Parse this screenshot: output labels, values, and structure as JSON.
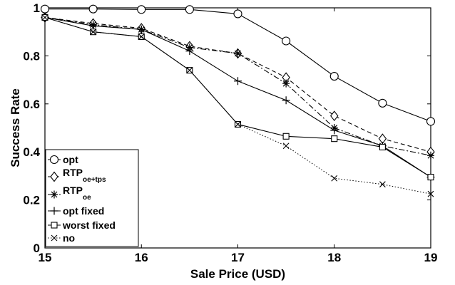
{
  "chart_data": {
    "type": "line",
    "xlabel": "Sale Price (USD)",
    "ylabel": "Success Rate",
    "xlim": [
      15,
      19
    ],
    "ylim": [
      0,
      1
    ],
    "xticks": [
      "15",
      "16",
      "17",
      "18",
      "19"
    ],
    "yticks": [
      "0",
      "0.2",
      "0.4",
      "0.6",
      "0.8",
      "1"
    ],
    "x": [
      15,
      15.5,
      16,
      16.5,
      17,
      17.5,
      18,
      18.5,
      19
    ],
    "legend_position": "bottom-left",
    "grid": false,
    "series": [
      {
        "name": "opt",
        "sub": "",
        "marker": "circle",
        "dash": "solid",
        "values": [
          0.995,
          0.995,
          0.993,
          0.993,
          0.975,
          0.862,
          0.715,
          0.603,
          0.527
        ]
      },
      {
        "name": "RTP",
        "sub": "oe+tps",
        "marker": "diamond",
        "dash": "dashed",
        "values": [
          0.96,
          0.935,
          0.915,
          0.84,
          0.81,
          0.71,
          0.55,
          0.455,
          0.4
        ]
      },
      {
        "name": "RTP",
        "sub": "oe",
        "marker": "star",
        "dash": "dashdot",
        "values": [
          0.96,
          0.93,
          0.91,
          0.835,
          0.81,
          0.685,
          0.5,
          0.425,
          0.385
        ]
      },
      {
        "name": "opt fixed",
        "sub": "",
        "marker": "plus",
        "dash": "solid",
        "values": [
          0.96,
          0.925,
          0.91,
          0.82,
          0.695,
          0.615,
          0.49,
          0.425,
          0.295
        ]
      },
      {
        "name": "worst fixed",
        "sub": "",
        "marker": "square",
        "dash": "solid",
        "values": [
          0.96,
          0.9,
          0.88,
          0.74,
          0.515,
          0.465,
          0.455,
          0.42,
          0.295
        ]
      },
      {
        "name": "no",
        "sub": "",
        "marker": "x",
        "dash": "dotted",
        "values": [
          0.96,
          0.9,
          0.88,
          0.74,
          0.515,
          0.425,
          0.29,
          0.265,
          0.225
        ]
      }
    ]
  }
}
